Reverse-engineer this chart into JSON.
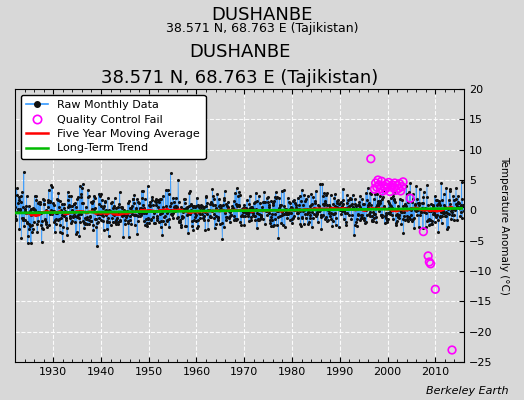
{
  "title": "DUSHANBE",
  "subtitle": "38.571 N, 68.763 E (Tajikistan)",
  "ylabel": "Temperature Anomaly (°C)",
  "credit": "Berkeley Earth",
  "xlim": [
    1922,
    2016
  ],
  "ylim": [
    -25,
    20
  ],
  "yticks": [
    -25,
    -20,
    -15,
    -10,
    -5,
    0,
    5,
    10,
    15,
    20
  ],
  "xticks": [
    1930,
    1940,
    1950,
    1960,
    1970,
    1980,
    1990,
    2000,
    2010
  ],
  "bg_color": "#d8d8d8",
  "grid_color": "#ffffff",
  "raw_line_color": "#3399ff",
  "raw_dot_color": "#111111",
  "qc_fail_color": "#ff00ff",
  "moving_avg_color": "#ff0000",
  "trend_color": "#00bb00",
  "title_fontsize": 13,
  "subtitle_fontsize": 9,
  "legend_fontsize": 8,
  "credit_fontsize": 8,
  "qc_outlier_times": [
    1997.25,
    1997.5,
    1997.75,
    1998.0,
    1998.25,
    1998.5,
    1998.75,
    1999.0,
    1999.25,
    1999.5,
    1999.75,
    2000.0,
    2000.25,
    2000.5,
    2000.75,
    2001.0,
    2001.25,
    2001.5,
    2001.75,
    2002.0,
    2002.25,
    2002.5,
    2002.75,
    2003.0,
    2003.25,
    1996.5,
    2004.75,
    2007.5,
    2008.5,
    2008.75,
    2009.0,
    2010.0,
    2013.5
  ],
  "qc_outlier_vals": [
    3.5,
    4.5,
    3.8,
    5.0,
    4.2,
    3.6,
    4.8,
    3.2,
    4.0,
    3.5,
    4.3,
    3.8,
    4.6,
    3.1,
    3.9,
    4.2,
    3.7,
    4.5,
    3.3,
    4.1,
    3.6,
    4.4,
    3.2,
    3.9,
    4.7,
    8.5,
    2.0,
    -3.5,
    -7.5,
    -8.5,
    -8.8,
    -13.0,
    -23.0
  ]
}
